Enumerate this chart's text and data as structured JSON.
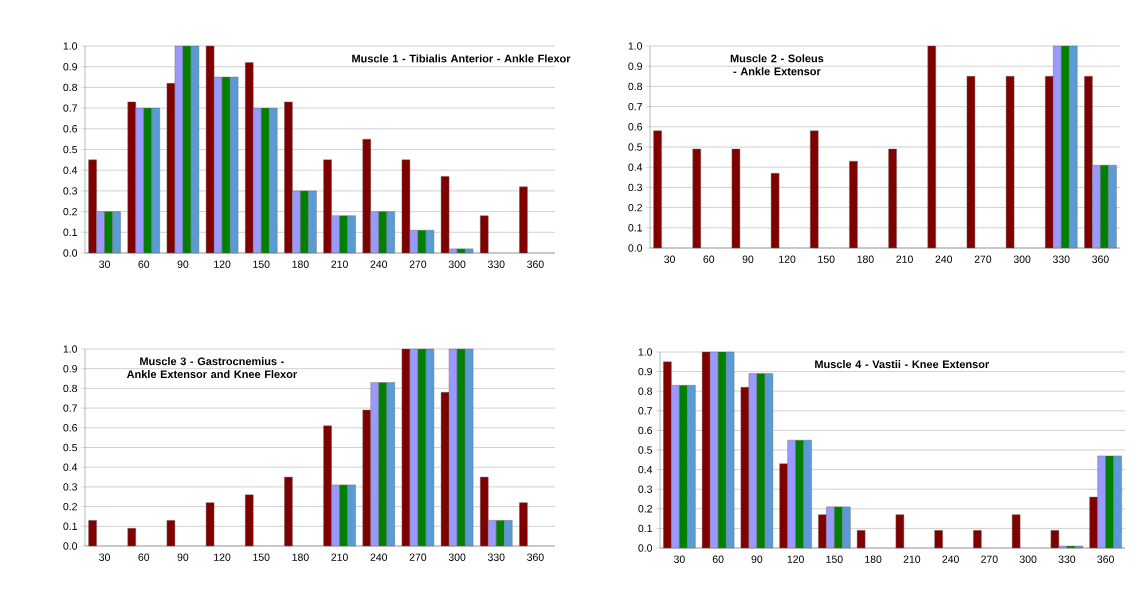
{
  "chart_data": [
    {
      "type": "bar",
      "title": "Muscle 1 - Tibialis Anterior - Ankle Flexor",
      "categories": [
        "30",
        "60",
        "90",
        "120",
        "150",
        "180",
        "210",
        "240",
        "270",
        "300",
        "330",
        "360"
      ],
      "ylim": [
        0,
        1
      ],
      "yticks": [
        {
          "value": 0,
          "label": "0.0"
        },
        {
          "value": 0.1,
          "label": "0.1"
        },
        {
          "value": 0.2,
          "label": "0.2"
        },
        {
          "value": 0.3,
          "label": "0.3"
        },
        {
          "value": 0.4,
          "label": "0.4"
        },
        {
          "value": 0.5,
          "label": "0.5"
        },
        {
          "value": 0.6,
          "label": "0.6"
        },
        {
          "value": 0.7,
          "label": "0.7"
        },
        {
          "value": 0.8,
          "label": "0.8"
        },
        {
          "value": 0.9,
          "label": "0.9"
        },
        {
          "value": 1,
          "label": "1.0"
        }
      ],
      "grid": "y",
      "series": [
        {
          "color": "#800000",
          "values": [
            0.45,
            0.73,
            0.82,
            1.0,
            0.92,
            0.73,
            0.45,
            0.55,
            0.45,
            0.37,
            0.18,
            0.32
          ]
        },
        {
          "color": "#9999ff",
          "values": [
            0.2,
            0.7,
            1.0,
            0.85,
            0.7,
            0.3,
            0.18,
            0.2,
            0.11,
            0.02,
            null,
            null
          ]
        },
        {
          "color": "#008000",
          "values": [
            0.2,
            0.7,
            1.0,
            0.85,
            0.7,
            0.3,
            0.18,
            0.2,
            0.11,
            0.02,
            null,
            null
          ]
        },
        {
          "color": "#5b9bd5",
          "values": [
            0.2,
            0.7,
            1.0,
            0.85,
            0.7,
            0.3,
            0.18,
            0.2,
            0.11,
            0.02,
            null,
            null
          ]
        }
      ]
    },
    {
      "type": "bar",
      "title": "Muscle 2 - Soleus - Ankle Extensor",
      "categories": [
        "30",
        "60",
        "90",
        "120",
        "150",
        "180",
        "210",
        "240",
        "270",
        "300",
        "330",
        "360"
      ],
      "ylim": [
        0,
        1
      ],
      "yticks": [
        {
          "value": 0,
          "label": "0.0"
        },
        {
          "value": 0.1,
          "label": "0.1"
        },
        {
          "value": 0.2,
          "label": "0.2"
        },
        {
          "value": 0.3,
          "label": "0.3"
        },
        {
          "value": 0.4,
          "label": "0.4"
        },
        {
          "value": 0.5,
          "label": "0.5"
        },
        {
          "value": 0.6,
          "label": "0.6"
        },
        {
          "value": 0.7,
          "label": "0.7"
        },
        {
          "value": 0.8,
          "label": "0.8"
        },
        {
          "value": 0.9,
          "label": "0.9"
        },
        {
          "value": 1,
          "label": "1.0"
        }
      ],
      "grid": "y",
      "series": [
        {
          "color": "#800000",
          "values": [
            0.58,
            0.49,
            0.49,
            0.37,
            0.58,
            0.43,
            0.49,
            1.0,
            0.85,
            0.85,
            0.85,
            0.85
          ]
        },
        {
          "color": "#9999ff",
          "values": [
            null,
            null,
            null,
            null,
            null,
            null,
            null,
            null,
            null,
            null,
            1.0,
            0.41
          ]
        },
        {
          "color": "#008000",
          "values": [
            null,
            null,
            null,
            null,
            null,
            null,
            null,
            null,
            null,
            null,
            1.0,
            0.41
          ]
        },
        {
          "color": "#5b9bd5",
          "values": [
            null,
            null,
            null,
            null,
            null,
            null,
            null,
            null,
            null,
            null,
            1.0,
            0.41
          ]
        }
      ]
    },
    {
      "type": "bar",
      "title": "Muscle 3 - Gastrocnemius - Ankle Extensor and Knee Flexor",
      "categories": [
        "30",
        "60",
        "90",
        "120",
        "150",
        "180",
        "210",
        "240",
        "270",
        "300",
        "330",
        "360"
      ],
      "ylim": [
        0,
        1
      ],
      "yticks": [
        {
          "value": 0,
          "label": "0.0"
        },
        {
          "value": 0.1,
          "label": "0.1"
        },
        {
          "value": 0.2,
          "label": "0.2"
        },
        {
          "value": 0.3,
          "label": "0.3"
        },
        {
          "value": 0.4,
          "label": "0.4"
        },
        {
          "value": 0.5,
          "label": "0.5"
        },
        {
          "value": 0.6,
          "label": "0.6"
        },
        {
          "value": 0.7,
          "label": "0.7"
        },
        {
          "value": 0.8,
          "label": "0.8"
        },
        {
          "value": 0.9,
          "label": "0.9"
        },
        {
          "value": 1,
          "label": "1.0"
        }
      ],
      "grid": "y",
      "series": [
        {
          "color": "#800000",
          "values": [
            0.13,
            0.09,
            0.13,
            0.22,
            0.26,
            0.35,
            0.61,
            0.69,
            1.0,
            0.78,
            0.35,
            0.22
          ]
        },
        {
          "color": "#9999ff",
          "values": [
            null,
            null,
            null,
            null,
            null,
            null,
            0.31,
            0.83,
            1.0,
            1.0,
            0.13,
            null
          ]
        },
        {
          "color": "#008000",
          "values": [
            null,
            null,
            null,
            null,
            null,
            null,
            0.31,
            0.83,
            1.0,
            1.0,
            0.13,
            null
          ]
        },
        {
          "color": "#5b9bd5",
          "values": [
            null,
            null,
            null,
            null,
            null,
            null,
            0.31,
            0.83,
            1.0,
            1.0,
            0.13,
            null
          ]
        }
      ]
    },
    {
      "type": "bar",
      "title": "Muscle 4 - Vastii - Knee Extensor",
      "categories": [
        "30",
        "60",
        "90",
        "120",
        "150",
        "180",
        "210",
        "240",
        "270",
        "300",
        "330",
        "360"
      ],
      "ylim": [
        0,
        1
      ],
      "yticks": [
        {
          "value": 0,
          "label": "0.0"
        },
        {
          "value": 0.1,
          "label": "0.1"
        },
        {
          "value": 0.2,
          "label": "0.2"
        },
        {
          "value": 0.3,
          "label": "0.3"
        },
        {
          "value": 0.4,
          "label": "0.4"
        },
        {
          "value": 0.5,
          "label": "0.5"
        },
        {
          "value": 0.6,
          "label": "0.6"
        },
        {
          "value": 0.7,
          "label": "0.7"
        },
        {
          "value": 0.8,
          "label": "0.8"
        },
        {
          "value": 0.9,
          "label": "0.9"
        },
        {
          "value": 1,
          "label": "1.0"
        }
      ],
      "grid": "y",
      "series": [
        {
          "color": "#800000",
          "values": [
            0.95,
            1.0,
            0.82,
            0.43,
            0.17,
            0.09,
            0.17,
            0.09,
            0.09,
            0.17,
            0.09,
            0.26
          ]
        },
        {
          "color": "#9999ff",
          "values": [
            0.83,
            1.0,
            0.89,
            0.55,
            0.21,
            null,
            null,
            null,
            null,
            null,
            0.01,
            0.47
          ]
        },
        {
          "color": "#008000",
          "values": [
            0.83,
            1.0,
            0.89,
            0.55,
            0.21,
            null,
            null,
            null,
            null,
            null,
            0.01,
            0.47
          ]
        },
        {
          "color": "#5b9bd5",
          "values": [
            0.83,
            1.0,
            0.89,
            0.55,
            0.21,
            null,
            null,
            null,
            null,
            null,
            0.01,
            0.47
          ]
        }
      ]
    }
  ]
}
